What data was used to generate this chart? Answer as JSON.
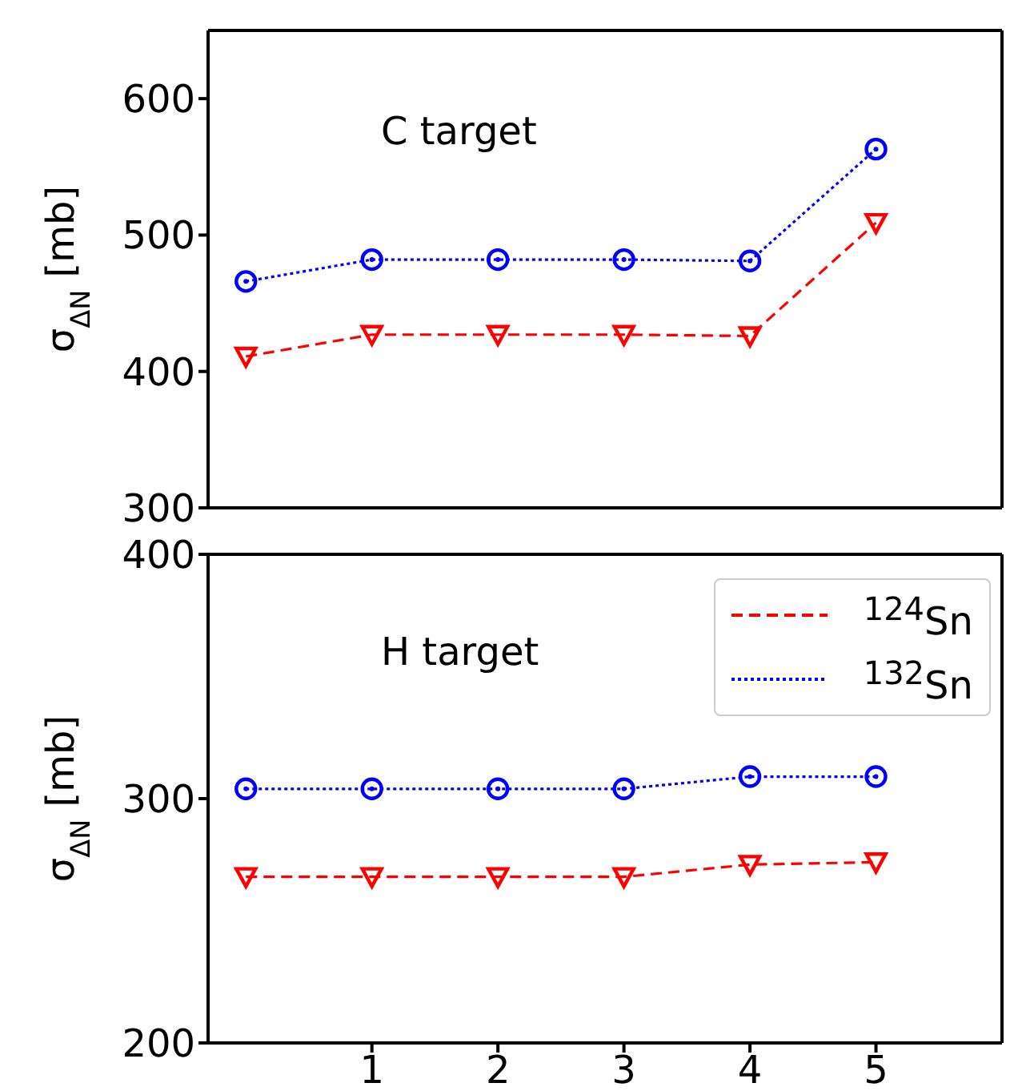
{
  "chart_data": [
    {
      "type": "line",
      "x": [
        0,
        1,
        2,
        3,
        4,
        5
      ],
      "xlim": [
        -0.3,
        6
      ],
      "xticks": [
        1,
        2,
        3,
        4,
        5
      ],
      "ylim": [
        300,
        650
      ],
      "yticks": [
        300,
        400,
        500,
        600
      ],
      "ylabel": "σ$_{ΔN}$  [mb]",
      "tick_labels": "y",
      "annotations": [
        "C target"
      ],
      "series": [
        {
          "color": "#ff0000",
          "marker": "triangle",
          "line_style": "dashed",
          "values": [
            411,
            427,
            427,
            427,
            426,
            509
          ]
        },
        {
          "color": "#0000ff",
          "marker": "circle",
          "line_style": "dotted",
          "values": [
            466,
            482,
            482,
            482,
            481,
            563
          ]
        }
      ]
    },
    {
      "type": "line",
      "x": [
        0,
        1,
        2,
        3,
        4,
        5
      ],
      "xlim": [
        -0.3,
        6
      ],
      "xticks": [
        1,
        2,
        3,
        4,
        5
      ],
      "ylim": [
        200,
        400
      ],
      "yticks": [
        200,
        300,
        400
      ],
      "ylabel": "σ$_{ΔN}$  [mb]",
      "annotations": [
        "H target"
      ],
      "legend": "top right",
      "series": [
        {
          "name": "$^{124}$Sn",
          "color": "#ff0000",
          "marker": "triangle",
          "line_style": "dashed",
          "values": [
            268,
            268,
            268,
            268,
            273,
            274
          ]
        },
        {
          "name": "$^{132}$Sn",
          "color": "#0000ff",
          "marker": "circle",
          "line_style": "dotted",
          "values": [
            304,
            304,
            304,
            304,
            309,
            309
          ]
        }
      ]
    }
  ]
}
